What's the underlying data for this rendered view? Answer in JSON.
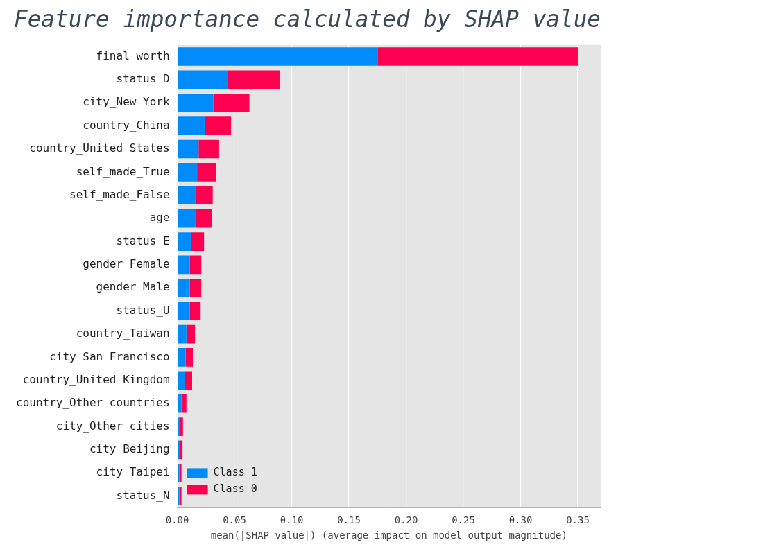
{
  "chart_data": {
    "type": "bar",
    "orientation": "horizontal",
    "stacked": true,
    "title": "Feature importance calculated by SHAP value",
    "x_label": "mean(|SHAP value|) (average impact on model output magnitude)",
    "categories": [
      "final_worth",
      "status_D",
      "city_New York",
      "country_China",
      "country_United States",
      "self_made_True",
      "self_made_False",
      "age",
      "status_E",
      "gender_Female",
      "gender_Male",
      "status_U",
      "country_Taiwan",
      "city_San Francisco",
      "country_United Kingdom",
      "country_Other countries",
      "city_Other cities",
      "city_Beijing",
      "city_Taipei",
      "status_N"
    ],
    "series": [
      {
        "name": "Class 1",
        "color": "#008bfb",
        "values": [
          0.175,
          0.0445,
          0.0315,
          0.024,
          0.0186,
          0.0173,
          0.016,
          0.016,
          0.0124,
          0.011,
          0.011,
          0.011,
          0.008,
          0.0074,
          0.0068,
          0.0037,
          0.0025,
          0.0025,
          0.0019,
          0.0019
        ]
      },
      {
        "name": "Class 0",
        "color": "#ff0051",
        "values": [
          0.175,
          0.045,
          0.0315,
          0.023,
          0.018,
          0.0167,
          0.015,
          0.0143,
          0.011,
          0.01,
          0.01,
          0.0094,
          0.0075,
          0.0062,
          0.0062,
          0.0043,
          0.0025,
          0.0021,
          0.0018,
          0.0018
        ]
      }
    ],
    "xlim": [
      0,
      0.37
    ],
    "xticks": [
      {
        "value": 0,
        "label": "0.00"
      },
      {
        "value": 0.05,
        "label": "0.05"
      },
      {
        "value": 0.1,
        "label": "0.10"
      },
      {
        "value": 0.15,
        "label": "0.15"
      },
      {
        "value": 0.2,
        "label": "0.20"
      },
      {
        "value": 0.25,
        "label": "0.25"
      },
      {
        "value": 0.3,
        "label": "0.30"
      },
      {
        "value": 0.35,
        "label": "0.35"
      }
    ],
    "grid": true,
    "legend": "lower left"
  }
}
